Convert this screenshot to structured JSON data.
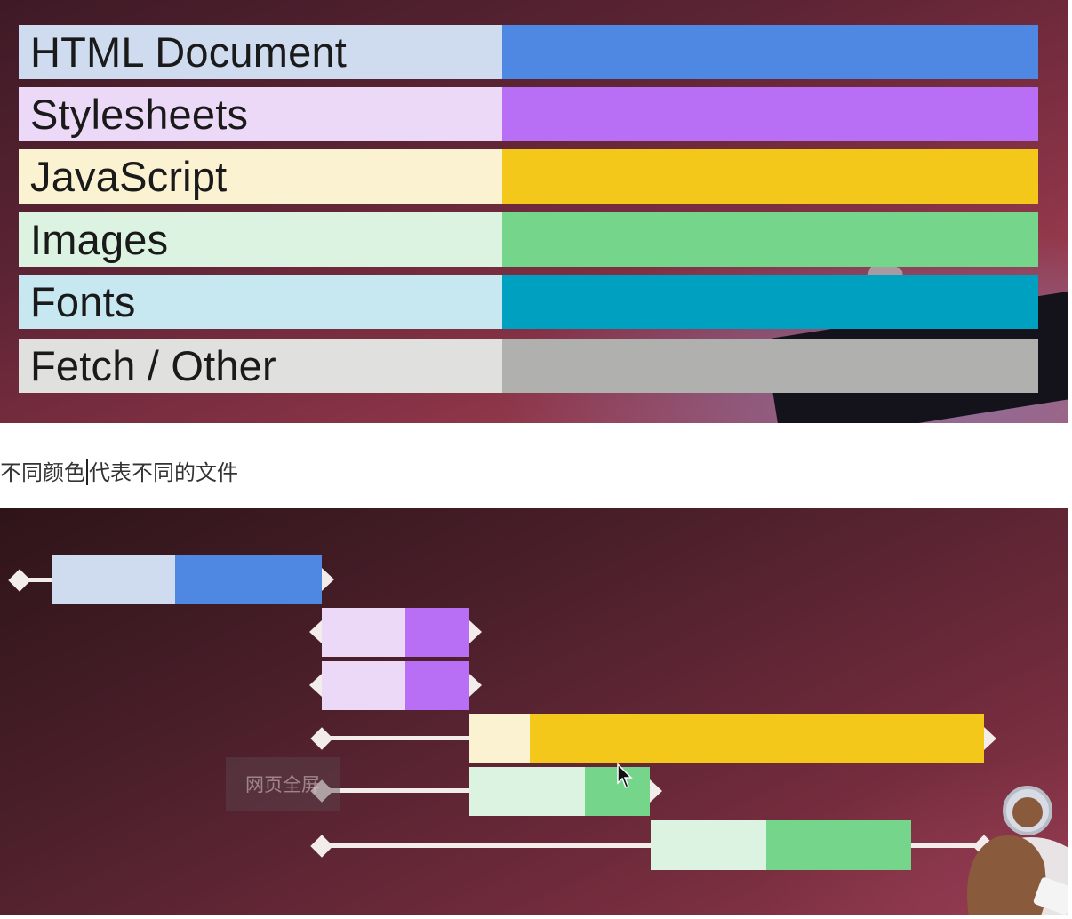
{
  "legend": {
    "items": [
      {
        "label": "HTML Document",
        "light": "#cfdcf0",
        "color": "#4f88e3"
      },
      {
        "label": "Stylesheets",
        "light": "#ecd9f7",
        "color": "#b86ef5"
      },
      {
        "label": "JavaScript",
        "light": "#fbf2d2",
        "color": "#f4c71b"
      },
      {
        "label": "Images",
        "light": "#dcf3e2",
        "color": "#74d58b"
      },
      {
        "label": "Fonts",
        "light": "#c8e8f1",
        "color": "#00a0c0"
      },
      {
        "label": "Fetch / Other",
        "light": "#e0e0de",
        "color": "#b0b0ae"
      }
    ]
  },
  "caption": {
    "before": "不同颜色",
    "after": "代表不同的文件"
  },
  "overlay": {
    "fullscreen_label": "网页全屏"
  },
  "waterfall": {
    "requests": [
      {
        "type": "HTML Document"
      },
      {
        "type": "Stylesheets"
      },
      {
        "type": "Stylesheets"
      },
      {
        "type": "JavaScript"
      },
      {
        "type": "Images"
      },
      {
        "type": "Images"
      }
    ]
  }
}
